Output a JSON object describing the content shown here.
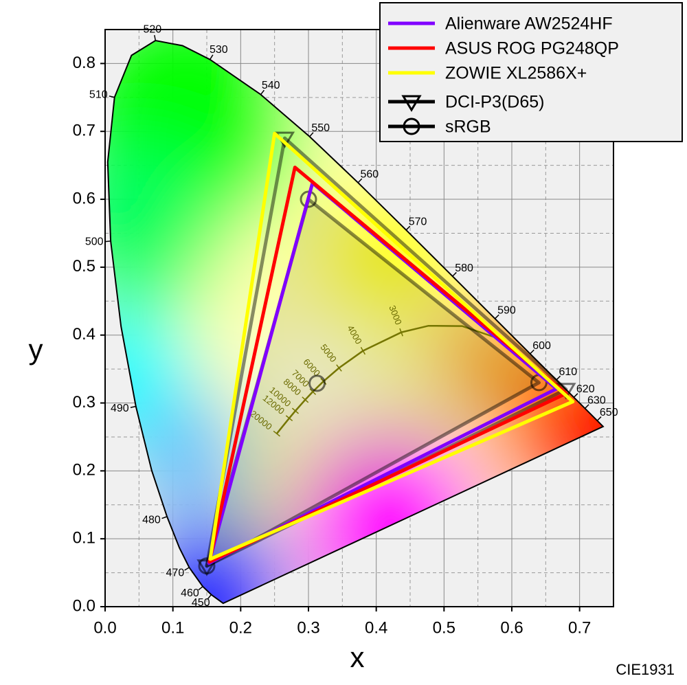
{
  "chart_data": {
    "type": "scatter",
    "xlabel": "x",
    "ylabel": "y",
    "corner_label": "CIE1931",
    "xlim": [
      0,
      0.75
    ],
    "ylim": [
      0,
      0.85
    ],
    "xticks": [
      {
        "value": 0,
        "label": "0.0"
      },
      0.1,
      0.2,
      0.3,
      0.4,
      0.5,
      0.6,
      0.7
    ],
    "yticks": [
      {
        "value": 0,
        "label": "0.0"
      },
      0.1,
      0.2,
      0.3,
      0.4,
      0.5,
      0.6,
      0.7,
      0.8
    ],
    "x_minor_grid": [
      0.05,
      0.15,
      0.25,
      0.35,
      0.45,
      0.55,
      0.65
    ],
    "y_minor_grid": [
      0.05,
      0.15,
      0.25,
      0.35,
      0.45,
      0.55,
      0.65,
      0.75
    ],
    "grid": true,
    "legend": "upper right",
    "series": [
      {
        "name": "Alienware AW2524HF",
        "color": "#8000ff",
        "x": [
          0.666,
          0.306,
          0.153
        ],
        "y": [
          0.321,
          0.624,
          0.064
        ]
      },
      {
        "name": "ASUS ROG PG248QP",
        "color": "#ff0000",
        "x": [
          0.68,
          0.28,
          0.154
        ],
        "y": [
          0.314,
          0.647,
          0.066
        ]
      },
      {
        "name": "ZOWIE XL2586X+",
        "color": "#ffff00",
        "x": [
          0.69,
          0.25,
          0.155
        ],
        "y": [
          0.302,
          0.697,
          0.07
        ]
      },
      {
        "name": "DCI-P3(D65)",
        "color": "#000000",
        "marker": "triangle-down",
        "x": [
          0.68,
          0.265,
          0.15
        ],
        "y": [
          0.32,
          0.69,
          0.06
        ]
      },
      {
        "name": "sRGB",
        "color": "#000000",
        "marker": "circle",
        "x": [
          0.64,
          0.3,
          0.15
        ],
        "y": [
          0.33,
          0.6,
          0.06
        ]
      }
    ],
    "white_point": {
      "x": 0.3127,
      "y": 0.329
    },
    "spectral_locus": {
      "wavelengths": [
        null,
        450,
        460,
        470,
        null,
        480,
        null,
        490,
        null,
        500,
        null,
        510,
        null,
        520,
        null,
        530,
        540,
        550,
        560,
        570,
        580,
        590,
        600,
        610,
        620,
        630,
        650,
        null
      ],
      "x": [
        0.1741,
        0.1566,
        0.144,
        0.1241,
        0.1096,
        0.0913,
        0.0687,
        0.0454,
        0.0235,
        0.0082,
        0.0039,
        0.0139,
        0.0389,
        0.0743,
        0.1142,
        0.1547,
        0.2296,
        0.3016,
        0.3731,
        0.4441,
        0.5125,
        0.5752,
        0.627,
        0.6658,
        0.6915,
        0.7079,
        0.726,
        0.7347
      ],
      "y": [
        0.005,
        0.0177,
        0.0297,
        0.0578,
        0.0868,
        0.1327,
        0.2007,
        0.295,
        0.4127,
        0.5384,
        0.6548,
        0.7502,
        0.812,
        0.8338,
        0.8262,
        0.8059,
        0.7543,
        0.6923,
        0.6245,
        0.5547,
        0.4866,
        0.4242,
        0.3725,
        0.334,
        0.3083,
        0.292,
        0.274,
        0.2653
      ]
    },
    "planckian_locus": {
      "temperatures": [
        20000,
        12000,
        10000,
        8000,
        7000,
        6000,
        5000,
        4000,
        3000,
        null,
        null,
        null
      ],
      "x": [
        0.2532,
        0.2716,
        0.2807,
        0.2952,
        0.3064,
        0.3221,
        0.3451,
        0.3805,
        0.4369,
        0.477,
        0.5267,
        0.5857
      ],
      "y": [
        0.2548,
        0.2776,
        0.2884,
        0.3048,
        0.3166,
        0.3318,
        0.3516,
        0.3768,
        0.4041,
        0.4137,
        0.4133,
        0.3931
      ]
    }
  }
}
